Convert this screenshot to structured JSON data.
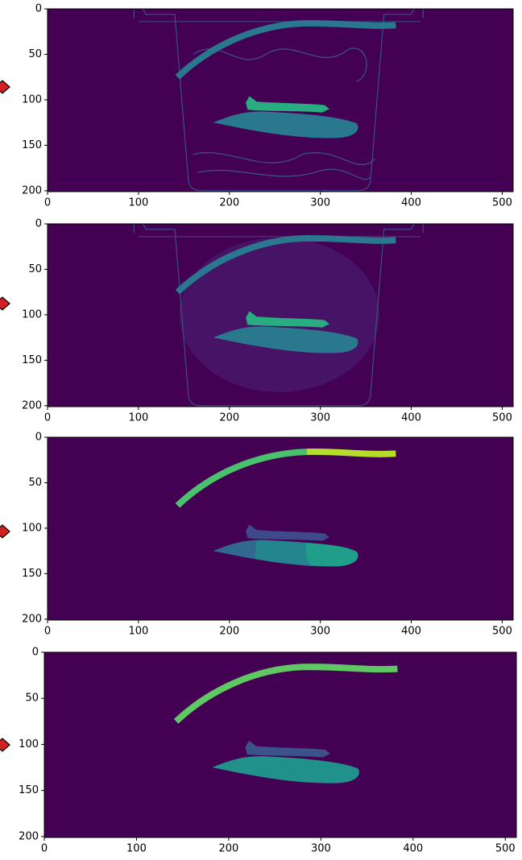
{
  "chart_data": [
    {
      "type": "image",
      "xlim": [
        0,
        512
      ],
      "ylim": [
        0,
        201
      ],
      "invert_y": true,
      "xticks": [
        0,
        100,
        200,
        300,
        400,
        500
      ],
      "yticks": [
        0,
        50,
        100,
        150,
        200
      ]
    },
    {
      "type": "image",
      "xlim": [
        0,
        512
      ],
      "ylim": [
        0,
        201
      ],
      "invert_y": true,
      "xticks": [
        0,
        100,
        200,
        300,
        400,
        500
      ],
      "yticks": [
        0,
        50,
        100,
        150,
        200
      ]
    },
    {
      "type": "image",
      "xlim": [
        0,
        512
      ],
      "ylim": [
        0,
        201
      ],
      "invert_y": true,
      "xticks": [
        0,
        100,
        200,
        300,
        400,
        500
      ],
      "yticks": [
        0,
        50,
        100,
        150,
        200
      ]
    },
    {
      "type": "image",
      "xlim": [
        0,
        512
      ],
      "ylim": [
        0,
        201
      ],
      "invert_y": true,
      "xticks": [
        0,
        100,
        200,
        300,
        400,
        500
      ],
      "yticks": [
        0,
        50,
        100,
        150,
        200
      ]
    }
  ]
}
